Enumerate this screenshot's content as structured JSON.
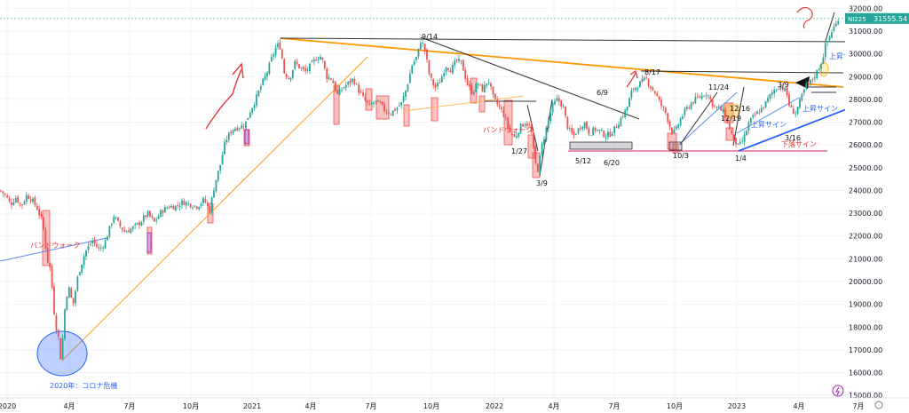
{
  "chart_data": {
    "type": "candlestick",
    "symbol": "NI225",
    "last_price": "31555.54",
    "ylim": [
      15500,
      32300
    ],
    "y_ticks": [
      {
        "v": 32000,
        "label": "32000.00"
      },
      {
        "v": 31000,
        "label": "31000.00"
      },
      {
        "v": 30000,
        "label": "30000.00"
      },
      {
        "v": 29000,
        "label": "29000.00"
      },
      {
        "v": 28000,
        "label": "28000.00"
      },
      {
        "v": 27000,
        "label": "27000.00"
      },
      {
        "v": 26000,
        "label": "26000.00"
      },
      {
        "v": 25000,
        "label": "25000.00"
      },
      {
        "v": 24000,
        "label": "24000.00"
      },
      {
        "v": 23000,
        "label": "23000.00"
      },
      {
        "v": 22000,
        "label": "22000.00"
      },
      {
        "v": 21000,
        "label": "21000.00"
      },
      {
        "v": 20000,
        "label": "20000.00"
      },
      {
        "v": 19000,
        "label": "19000.00"
      },
      {
        "v": 18000,
        "label": "18000.00"
      },
      {
        "v": 17000,
        "label": "17000.00"
      },
      {
        "v": 16000,
        "label": "16000.00"
      },
      {
        "v": 15000,
        "label": "15000.00"
      }
    ],
    "x_ticks": [
      "2020",
      "4月",
      "7月",
      "10月",
      "2021",
      "4月",
      "7月",
      "10月",
      "2022",
      "4月",
      "7月",
      "10月",
      "2023",
      "4月",
      "7月"
    ],
    "price_path": [
      [
        0,
        24000
      ],
      [
        6,
        23800
      ],
      [
        12,
        23400
      ],
      [
        18,
        23700
      ],
      [
        24,
        23300
      ],
      [
        30,
        23800
      ],
      [
        36,
        23600
      ],
      [
        42,
        23200
      ],
      [
        48,
        22600
      ],
      [
        53,
        21000
      ],
      [
        57,
        20500
      ],
      [
        62,
        18200
      ],
      [
        66,
        17500
      ],
      [
        68,
        16600
      ],
      [
        70,
        17200
      ],
      [
        74,
        19300
      ],
      [
        78,
        19700
      ],
      [
        82,
        18900
      ],
      [
        88,
        20300
      ],
      [
        96,
        21300
      ],
      [
        104,
        21800
      ],
      [
        112,
        21400
      ],
      [
        118,
        21700
      ],
      [
        124,
        22400
      ],
      [
        128,
        22900
      ],
      [
        134,
        22500
      ],
      [
        140,
        22200
      ],
      [
        148,
        22300
      ],
      [
        158,
        22600
      ],
      [
        166,
        23000
      ],
      [
        174,
        22600
      ],
      [
        182,
        23100
      ],
      [
        190,
        23300
      ],
      [
        198,
        23300
      ],
      [
        206,
        23500
      ],
      [
        214,
        23400
      ],
      [
        222,
        23300
      ],
      [
        230,
        23600
      ],
      [
        236,
        23100
      ],
      [
        242,
        24300
      ],
      [
        248,
        25100
      ],
      [
        254,
        26200
      ],
      [
        262,
        26700
      ],
      [
        270,
        26800
      ],
      [
        276,
        26900
      ],
      [
        282,
        27500
      ],
      [
        288,
        28000
      ],
      [
        294,
        28600
      ],
      [
        300,
        29100
      ],
      [
        306,
        29800
      ],
      [
        312,
        30400
      ],
      [
        316,
        30300
      ],
      [
        320,
        29200
      ],
      [
        326,
        28900
      ],
      [
        332,
        29600
      ],
      [
        338,
        29400
      ],
      [
        344,
        29200
      ],
      [
        350,
        29500
      ],
      [
        356,
        29800
      ],
      [
        362,
        29900
      ],
      [
        368,
        29000
      ],
      [
        374,
        28900
      ],
      [
        380,
        28200
      ],
      [
        386,
        28500
      ],
      [
        392,
        28700
      ],
      [
        398,
        28900
      ],
      [
        404,
        28400
      ],
      [
        410,
        28000
      ],
      [
        416,
        27700
      ],
      [
        422,
        27900
      ],
      [
        428,
        27800
      ],
      [
        434,
        27500
      ],
      [
        440,
        27400
      ],
      [
        446,
        27600
      ],
      [
        452,
        27800
      ],
      [
        458,
        28500
      ],
      [
        464,
        29500
      ],
      [
        470,
        29900
      ],
      [
        474,
        30600
      ],
      [
        478,
        30300
      ],
      [
        484,
        29000
      ],
      [
        490,
        28500
      ],
      [
        496,
        28800
      ],
      [
        502,
        29500
      ],
      [
        508,
        29300
      ],
      [
        514,
        29700
      ],
      [
        520,
        29600
      ],
      [
        526,
        28700
      ],
      [
        532,
        28300
      ],
      [
        538,
        28700
      ],
      [
        544,
        28400
      ],
      [
        550,
        28900
      ],
      [
        556,
        28000
      ],
      [
        562,
        27700
      ],
      [
        568,
        27300
      ],
      [
        574,
        26600
      ],
      [
        580,
        26300
      ],
      [
        586,
        26800
      ],
      [
        592,
        27000
      ],
      [
        598,
        26700
      ],
      [
        603,
        25200
      ],
      [
        606,
        24900
      ],
      [
        610,
        25900
      ],
      [
        616,
        26800
      ],
      [
        622,
        27700
      ],
      [
        628,
        28000
      ],
      [
        634,
        27700
      ],
      [
        640,
        26700
      ],
      [
        646,
        26400
      ],
      [
        652,
        26700
      ],
      [
        658,
        27000
      ],
      [
        664,
        26500
      ],
      [
        670,
        26700
      ],
      [
        676,
        26600
      ],
      [
        682,
        26400
      ],
      [
        688,
        26500
      ],
      [
        694,
        26800
      ],
      [
        700,
        27200
      ],
      [
        706,
        27600
      ],
      [
        712,
        28400
      ],
      [
        718,
        28600
      ],
      [
        724,
        28800
      ],
      [
        728,
        28900
      ],
      [
        732,
        28600
      ],
      [
        738,
        28300
      ],
      [
        744,
        27800
      ],
      [
        750,
        27400
      ],
      [
        754,
        26900
      ],
      [
        758,
        26500
      ],
      [
        762,
        26700
      ],
      [
        766,
        27100
      ],
      [
        772,
        27500
      ],
      [
        780,
        27900
      ],
      [
        788,
        28100
      ],
      [
        796,
        28300
      ],
      [
        804,
        27700
      ],
      [
        810,
        27600
      ],
      [
        816,
        27400
      ],
      [
        820,
        26900
      ],
      [
        826,
        26300
      ],
      [
        832,
        25900
      ],
      [
        838,
        26300
      ],
      [
        844,
        27000
      ],
      [
        850,
        27300
      ],
      [
        856,
        27500
      ],
      [
        862,
        27800
      ],
      [
        868,
        28200
      ],
      [
        874,
        28500
      ],
      [
        880,
        28600
      ],
      [
        886,
        28300
      ],
      [
        890,
        27600
      ],
      [
        896,
        27400
      ],
      [
        902,
        28000
      ],
      [
        908,
        28600
      ],
      [
        914,
        28800
      ],
      [
        920,
        29200
      ],
      [
        926,
        29700
      ],
      [
        930,
        30400
      ],
      [
        934,
        30700
      ],
      [
        938,
        31100
      ],
      [
        942,
        31300
      ],
      [
        946,
        31800
      ]
    ],
    "annotations": [
      {
        "text": "9/14"
      },
      {
        "text": "6/9"
      },
      {
        "text": "8/17"
      },
      {
        "text": "11/24"
      },
      {
        "text": "3/9"
      },
      {
        "text": "12/16"
      },
      {
        "text": "12/19"
      },
      {
        "text": "1/27"
      },
      {
        "text": "5/12"
      },
      {
        "text": "6/20"
      },
      {
        "text": "10/3"
      },
      {
        "text": "1/4"
      },
      {
        "text": "3/16"
      },
      {
        "text": "3/9"
      },
      {
        "text": "バンドウォーク"
      },
      {
        "text": "バンドウォーク"
      },
      {
        "text": "上昇サイン"
      },
      {
        "text": "上昇サイン"
      },
      {
        "text": "上昇サイン"
      },
      {
        "text": "下落サイン"
      },
      {
        "text": "2020年：コロナ危機"
      },
      {
        "text": "?"
      }
    ]
  }
}
